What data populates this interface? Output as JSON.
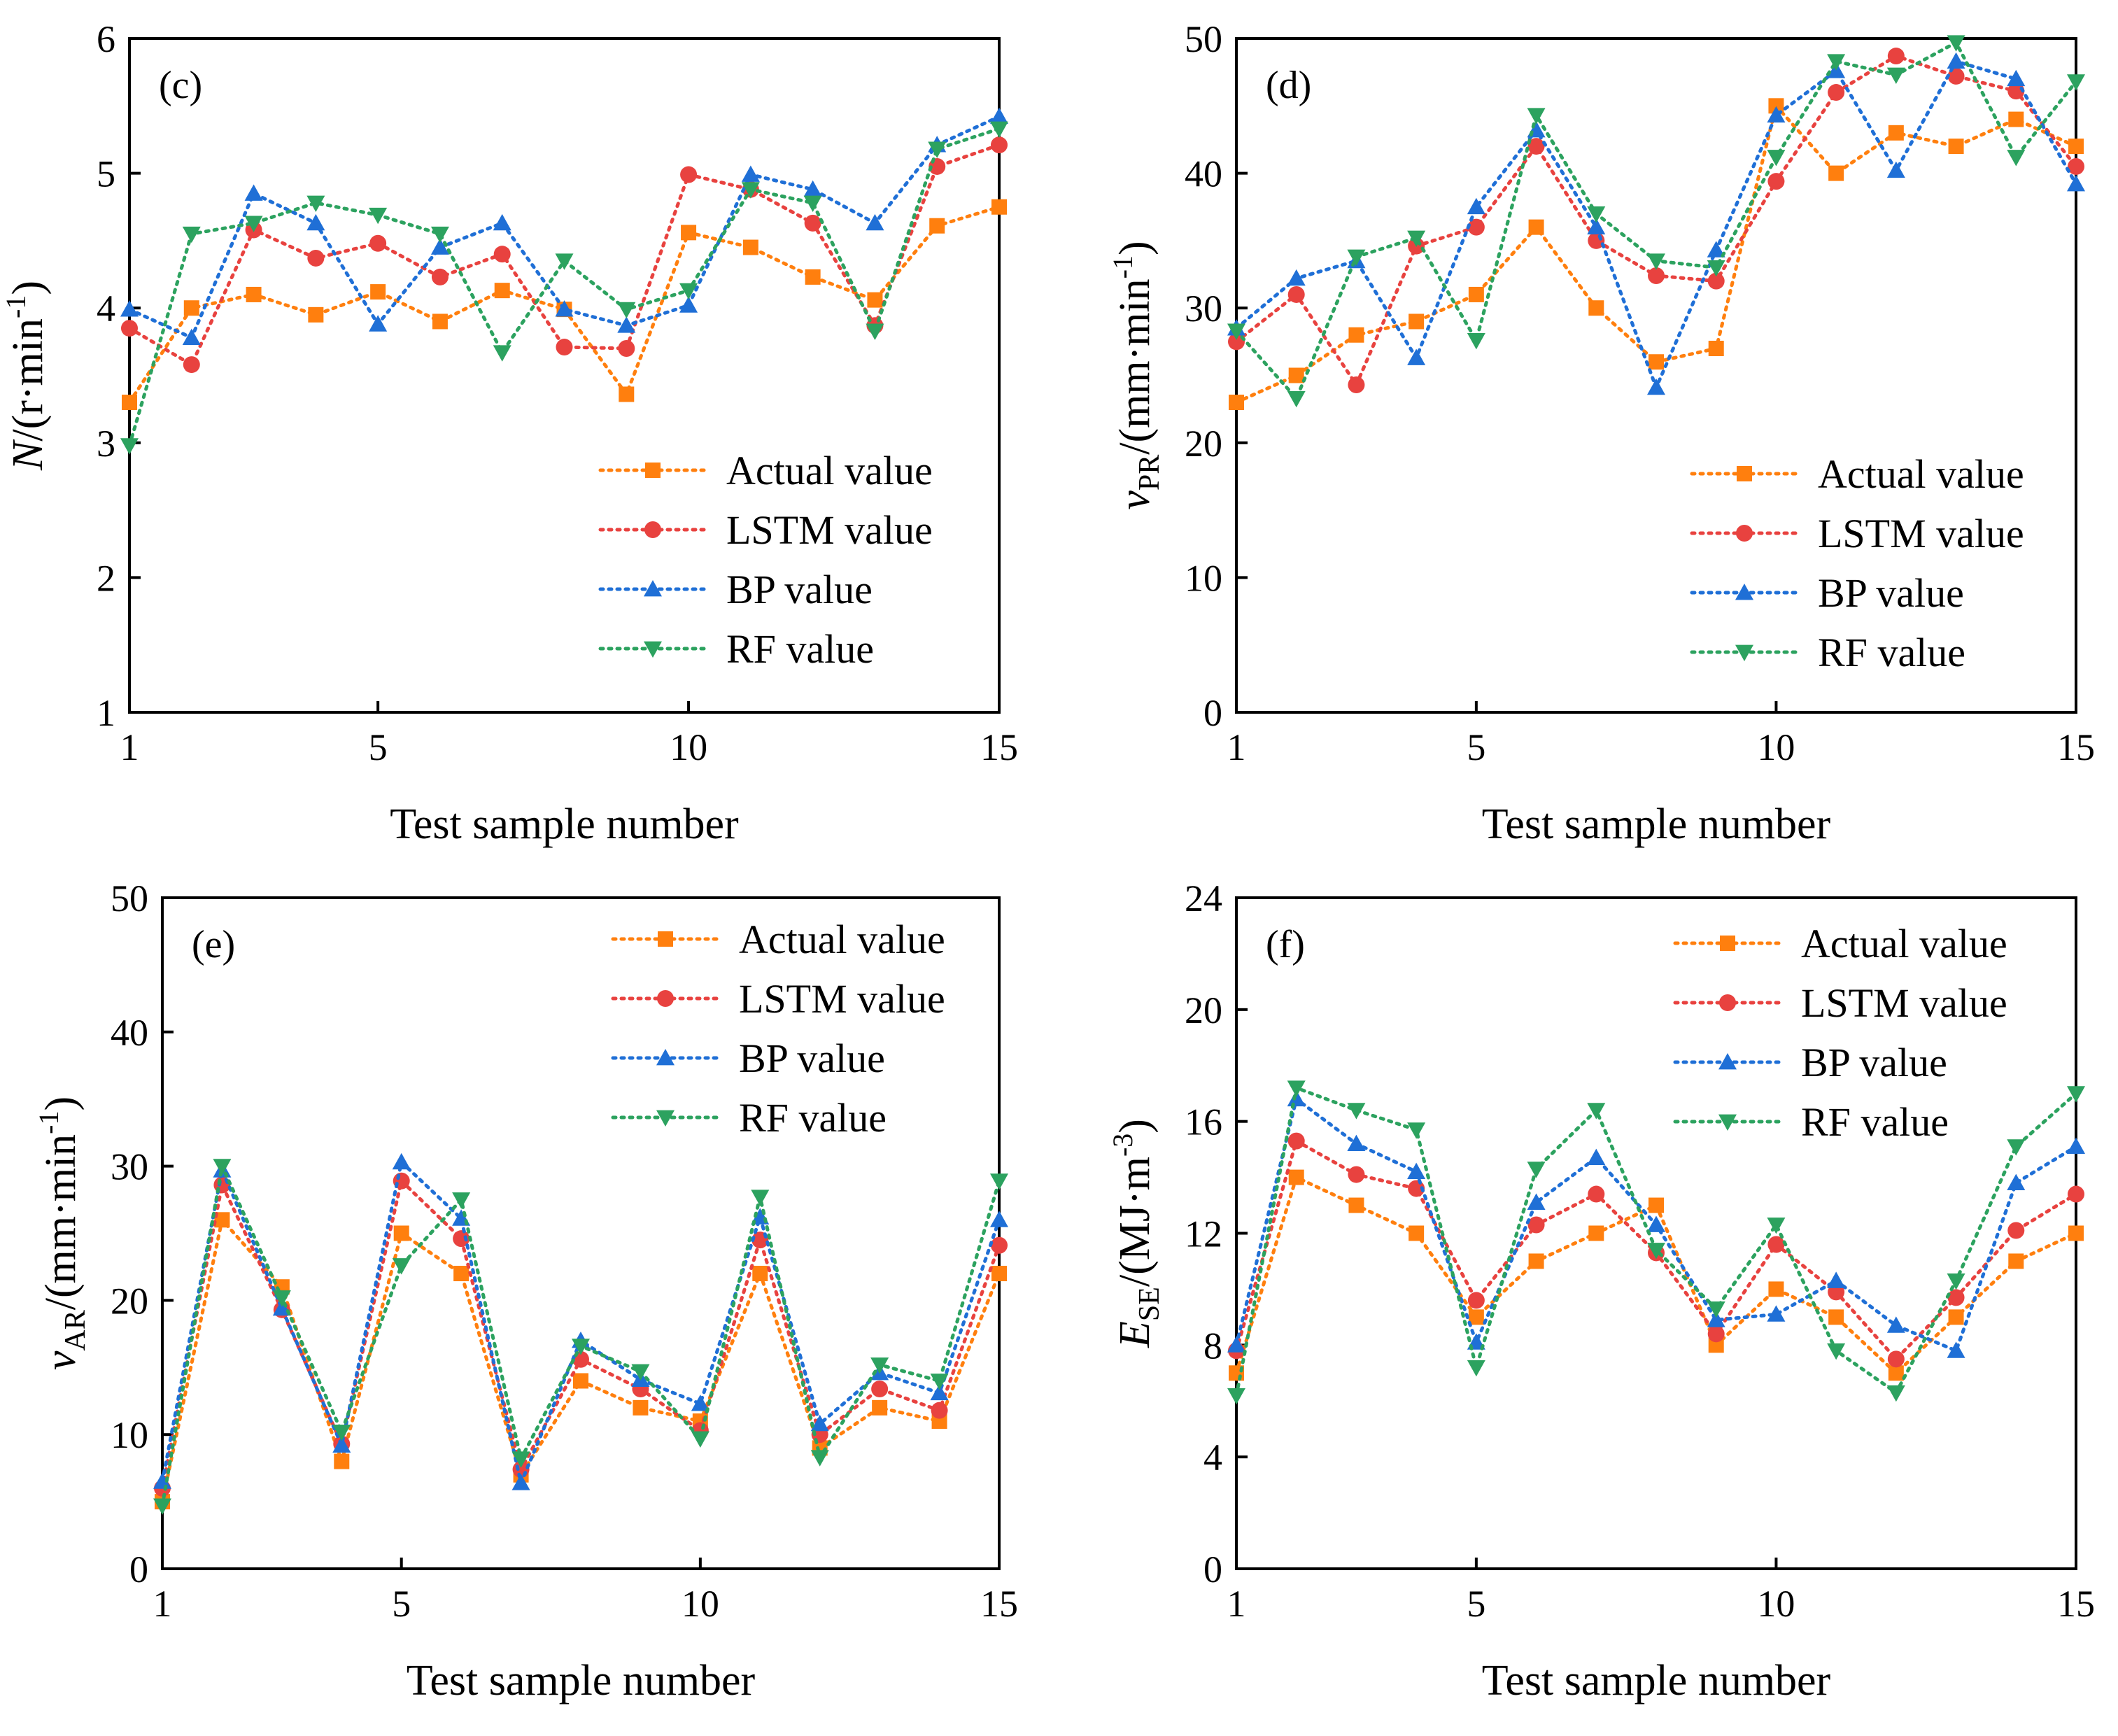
{
  "colors": {
    "actual": "#ff7f0e",
    "lstm": "#e8423f",
    "bp": "#1f6fd6",
    "rf": "#2ca25f"
  },
  "legend_labels": [
    "Actual value",
    "LSTM value",
    "BP value",
    "RF value"
  ],
  "chart_data": [
    {
      "type": "line",
      "panel_label": "(c)",
      "ylabel_main": "N",
      "ylabel_sub": "",
      "ylabel_unit": "/(r·min",
      "ylabel_exp": "-1",
      "ylabel_close": ")",
      "xlabel": "Test sample number",
      "xlim": [
        1,
        15
      ],
      "ylim": [
        1,
        6
      ],
      "xticks": [
        1,
        5,
        10,
        15
      ],
      "yticks": [
        1,
        2,
        3,
        4,
        5,
        6
      ],
      "legend_position": "bottom-right",
      "x": [
        1,
        2,
        3,
        4,
        5,
        6,
        7,
        8,
        9,
        10,
        11,
        12,
        13,
        14,
        15
      ],
      "series": [
        {
          "name": "Actual value",
          "marker": "square",
          "values": [
            3.3,
            4.0,
            4.1,
            3.95,
            4.12,
            3.9,
            4.13,
            3.99,
            3.36,
            4.56,
            4.45,
            4.23,
            4.06,
            4.61,
            4.75
          ]
        },
        {
          "name": "LSTM value",
          "marker": "circle",
          "values": [
            3.85,
            3.58,
            4.58,
            4.37,
            4.48,
            4.23,
            4.4,
            3.71,
            3.7,
            4.99,
            4.88,
            4.63,
            3.87,
            5.05,
            5.21
          ]
        },
        {
          "name": "BP value",
          "marker": "triangle-up",
          "values": [
            3.99,
            3.78,
            4.85,
            4.63,
            3.88,
            4.45,
            4.63,
            3.99,
            3.87,
            4.02,
            4.99,
            4.88,
            4.63,
            5.21,
            5.42
          ]
        },
        {
          "name": "RF value",
          "marker": "triangle-down",
          "values": [
            2.98,
            4.55,
            4.63,
            4.78,
            4.69,
            4.55,
            3.67,
            4.35,
            3.99,
            4.13,
            4.88,
            4.78,
            3.83,
            5.18,
            5.33
          ]
        }
      ]
    },
    {
      "type": "line",
      "panel_label": "(d)",
      "ylabel_main": "v",
      "ylabel_sub": "PR",
      "ylabel_unit": "/(mm·min",
      "ylabel_exp": "-1",
      "ylabel_close": ")",
      "xlabel": "Test sample number",
      "xlim": [
        1,
        15
      ],
      "ylim": [
        0,
        50
      ],
      "xticks": [
        1,
        5,
        10,
        15
      ],
      "yticks": [
        0,
        10,
        20,
        30,
        40,
        50
      ],
      "legend_position": "bottom-right",
      "x": [
        1,
        2,
        3,
        4,
        5,
        6,
        7,
        8,
        9,
        10,
        11,
        12,
        13,
        14,
        15
      ],
      "series": [
        {
          "name": "Actual value",
          "marker": "square",
          "values": [
            23,
            25,
            28,
            29,
            31,
            36,
            30,
            26,
            27,
            45,
            40,
            43,
            42,
            44,
            42
          ]
        },
        {
          "name": "LSTM value",
          "marker": "circle",
          "values": [
            27.5,
            31,
            24.3,
            34.6,
            36,
            42,
            35,
            32.4,
            32,
            39.4,
            46,
            48.7,
            47.2,
            46.1,
            40.5
          ]
        },
        {
          "name": "BP value",
          "marker": "triangle-up",
          "values": [
            28.5,
            32.2,
            33.5,
            26.3,
            37.5,
            43.2,
            36,
            24.1,
            34.3,
            44.3,
            47.6,
            40.2,
            48.3,
            47,
            39.2
          ]
        },
        {
          "name": "RF value",
          "marker": "triangle-down",
          "values": [
            28.3,
            23.3,
            33.8,
            35.2,
            27.6,
            44.3,
            37,
            33.5,
            33,
            41.2,
            48.3,
            47.3,
            49.7,
            41.2,
            46.8
          ]
        }
      ]
    },
    {
      "type": "line",
      "panel_label": "(e)",
      "ylabel_main": "v",
      "ylabel_sub": "AR",
      "ylabel_unit": "/(mm·min",
      "ylabel_exp": "-1",
      "ylabel_close": ")",
      "xlabel": "Test sample number",
      "xlim": [
        1,
        15
      ],
      "ylim": [
        0,
        50
      ],
      "xticks": [
        1,
        5,
        10,
        15
      ],
      "yticks": [
        0,
        10,
        20,
        30,
        40,
        50
      ],
      "legend_position": "top-right",
      "x": [
        1,
        2,
        3,
        4,
        5,
        6,
        7,
        8,
        9,
        10,
        11,
        12,
        13,
        14,
        15
      ],
      "series": [
        {
          "name": "Actual value",
          "marker": "square",
          "values": [
            5,
            26,
            21,
            8,
            25,
            22,
            7,
            14,
            12,
            11,
            22,
            9,
            12,
            11,
            22
          ]
        },
        {
          "name": "LSTM value",
          "marker": "circle",
          "values": [
            6,
            28.6,
            19.3,
            9.3,
            28.9,
            24.6,
            7.4,
            15.6,
            13.4,
            10.3,
            24.5,
            10,
            13.4,
            11.8,
            24.1
          ]
        },
        {
          "name": "BP value",
          "marker": "triangle-up",
          "values": [
            6.5,
            29.7,
            19.4,
            9.2,
            30.3,
            26.1,
            6.4,
            17,
            14.1,
            12.3,
            26.2,
            10.8,
            14.6,
            13.1,
            26
          ]
        },
        {
          "name": "RF value",
          "marker": "triangle-down",
          "values": [
            4.7,
            30,
            20.2,
            10.2,
            22.6,
            27.5,
            8.2,
            16.6,
            14.7,
            9.7,
            27.7,
            8.3,
            15.2,
            14,
            28.9
          ]
        }
      ]
    },
    {
      "type": "line",
      "panel_label": "(f)",
      "ylabel_main": "E",
      "ylabel_sub": "SE",
      "ylabel_unit": "/(MJ·m",
      "ylabel_exp": "-3",
      "ylabel_close": ")",
      "xlabel": "Test sample number",
      "xlim": [
        1,
        15
      ],
      "ylim": [
        0,
        24
      ],
      "xticks": [
        1,
        5,
        10,
        15
      ],
      "yticks": [
        0,
        4,
        8,
        12,
        16,
        20,
        24
      ],
      "legend_position": "top-right",
      "x": [
        1,
        2,
        3,
        4,
        5,
        6,
        7,
        8,
        9,
        10,
        11,
        12,
        13,
        14,
        15
      ],
      "series": [
        {
          "name": "Actual value",
          "marker": "square",
          "values": [
            7,
            14,
            13,
            12,
            9,
            11,
            12,
            13,
            8,
            10,
            9,
            7,
            9,
            11,
            12
          ]
        },
        {
          "name": "LSTM value",
          "marker": "circle",
          "values": [
            7.8,
            15.3,
            14.1,
            13.6,
            9.6,
            12.3,
            13.4,
            11.3,
            8.4,
            11.6,
            9.9,
            7.5,
            9.7,
            12.1,
            13.4
          ]
        },
        {
          "name": "BP value",
          "marker": "triangle-up",
          "values": [
            8,
            16.8,
            15.2,
            14.2,
            8.1,
            13.1,
            14.7,
            12.3,
            8.9,
            9.1,
            10.3,
            8.7,
            7.8,
            13.8,
            15.1
          ]
        },
        {
          "name": "RF value",
          "marker": "triangle-down",
          "values": [
            6.2,
            17.2,
            16.4,
            15.7,
            7.2,
            14.3,
            16.4,
            11.4,
            9.3,
            12.3,
            7.8,
            6.3,
            10.3,
            15.1,
            17
          ]
        }
      ]
    }
  ]
}
